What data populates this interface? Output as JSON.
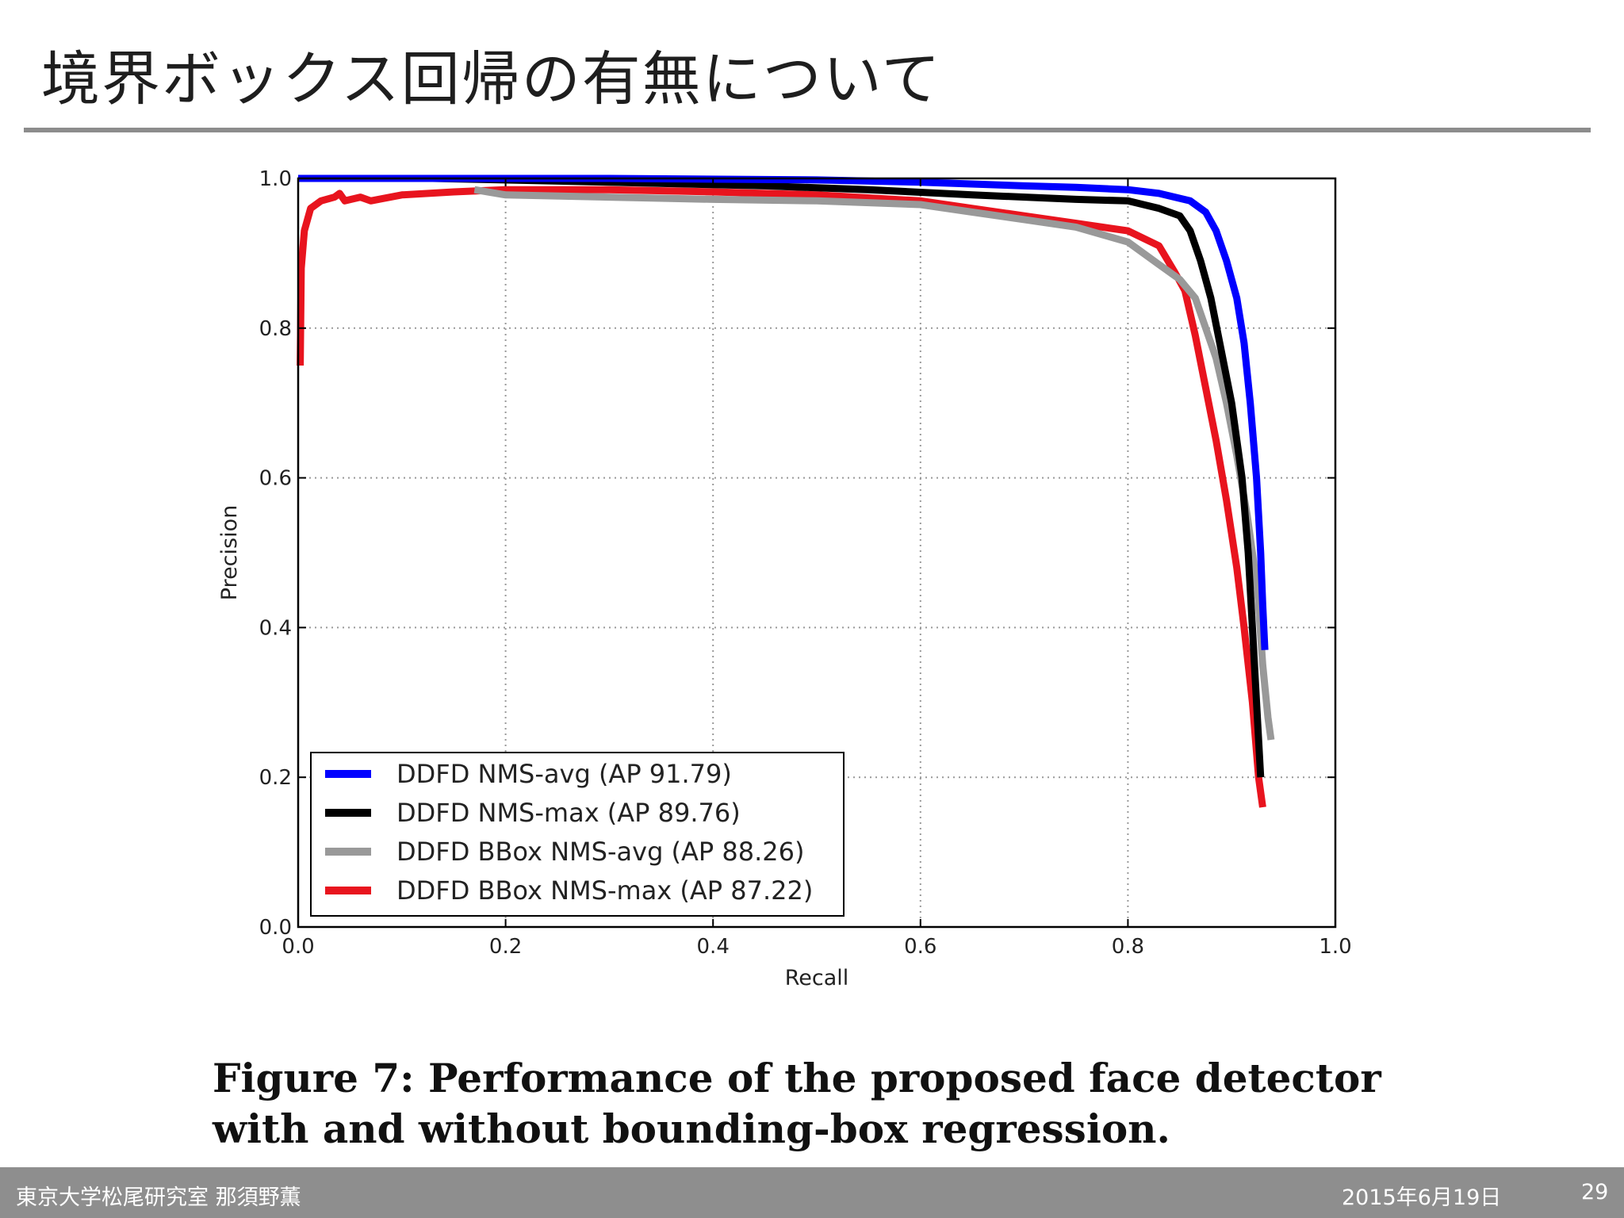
{
  "slide": {
    "title": "境界ボックス回帰の有無について",
    "caption_line1": "Figure 7: Performance of the proposed face detector",
    "caption_line2": "with and without bounding-box regression."
  },
  "footer": {
    "lab": "東京大学松尾研究室 那須野薫",
    "date": "2015年6月19日",
    "page": "29"
  },
  "chart_data": {
    "type": "line",
    "title": "",
    "xlabel": "Recall",
    "ylabel": "Precision",
    "xlim": [
      0.0,
      1.0
    ],
    "ylim": [
      0.0,
      1.0
    ],
    "xticks": [
      0.0,
      0.2,
      0.4,
      0.6,
      0.8,
      1.0
    ],
    "yticks": [
      0.0,
      0.2,
      0.4,
      0.6,
      0.8,
      1.0
    ],
    "xtick_labels": [
      "0.0",
      "0.2",
      "0.4",
      "0.6",
      "0.8",
      "1.0"
    ],
    "ytick_labels": [
      "0.0",
      "0.2",
      "0.4",
      "0.6",
      "0.8",
      "1.0"
    ],
    "grid": true,
    "legend_position": "lower-left",
    "series": [
      {
        "name": "DDFD NMS-avg (AP 91.79)",
        "color": "#0000ff",
        "points": [
          [
            0.0,
            1.0
          ],
          [
            0.3,
            1.0
          ],
          [
            0.5,
            0.998
          ],
          [
            0.6,
            0.995
          ],
          [
            0.7,
            0.99
          ],
          [
            0.75,
            0.988
          ],
          [
            0.8,
            0.985
          ],
          [
            0.83,
            0.98
          ],
          [
            0.86,
            0.97
          ],
          [
            0.875,
            0.955
          ],
          [
            0.885,
            0.93
          ],
          [
            0.895,
            0.89
          ],
          [
            0.905,
            0.84
          ],
          [
            0.912,
            0.78
          ],
          [
            0.918,
            0.7
          ],
          [
            0.924,
            0.6
          ],
          [
            0.928,
            0.5
          ],
          [
            0.93,
            0.43
          ],
          [
            0.932,
            0.37
          ]
        ]
      },
      {
        "name": "DDFD NMS-max (AP 89.76)",
        "color": "#000000",
        "points": [
          [
            0.13,
            1.0
          ],
          [
            0.3,
            0.995
          ],
          [
            0.45,
            0.99
          ],
          [
            0.55,
            0.985
          ],
          [
            0.65,
            0.978
          ],
          [
            0.75,
            0.972
          ],
          [
            0.8,
            0.97
          ],
          [
            0.83,
            0.96
          ],
          [
            0.85,
            0.95
          ],
          [
            0.86,
            0.93
          ],
          [
            0.87,
            0.89
          ],
          [
            0.88,
            0.84
          ],
          [
            0.89,
            0.77
          ],
          [
            0.9,
            0.7
          ],
          [
            0.91,
            0.6
          ],
          [
            0.916,
            0.5
          ],
          [
            0.92,
            0.4
          ],
          [
            0.924,
            0.3
          ],
          [
            0.928,
            0.2
          ]
        ]
      },
      {
        "name": "DDFD BBox NMS-avg (AP 88.26)",
        "color": "#999999",
        "points": [
          [
            0.17,
            0.985
          ],
          [
            0.2,
            0.978
          ],
          [
            0.3,
            0.975
          ],
          [
            0.4,
            0.972
          ],
          [
            0.5,
            0.97
          ],
          [
            0.6,
            0.965
          ],
          [
            0.65,
            0.955
          ],
          [
            0.7,
            0.945
          ],
          [
            0.75,
            0.935
          ],
          [
            0.8,
            0.915
          ],
          [
            0.83,
            0.885
          ],
          [
            0.85,
            0.865
          ],
          [
            0.865,
            0.84
          ],
          [
            0.875,
            0.8
          ],
          [
            0.885,
            0.76
          ],
          [
            0.895,
            0.7
          ],
          [
            0.905,
            0.63
          ],
          [
            0.915,
            0.55
          ],
          [
            0.925,
            0.45
          ],
          [
            0.93,
            0.35
          ],
          [
            0.935,
            0.28
          ],
          [
            0.938,
            0.25
          ]
        ]
      },
      {
        "name": "DDFD BBox NMS-max (AP 87.22)",
        "color": "#e8141e",
        "points": [
          [
            0.002,
            0.75
          ],
          [
            0.003,
            0.88
          ],
          [
            0.006,
            0.93
          ],
          [
            0.012,
            0.96
          ],
          [
            0.022,
            0.97
          ],
          [
            0.035,
            0.975
          ],
          [
            0.04,
            0.98
          ],
          [
            0.045,
            0.97
          ],
          [
            0.06,
            0.975
          ],
          [
            0.07,
            0.97
          ],
          [
            0.1,
            0.978
          ],
          [
            0.15,
            0.982
          ],
          [
            0.2,
            0.985
          ],
          [
            0.3,
            0.985
          ],
          [
            0.4,
            0.982
          ],
          [
            0.5,
            0.978
          ],
          [
            0.6,
            0.97
          ],
          [
            0.65,
            0.96
          ],
          [
            0.7,
            0.95
          ],
          [
            0.75,
            0.94
          ],
          [
            0.8,
            0.93
          ],
          [
            0.83,
            0.91
          ],
          [
            0.845,
            0.875
          ],
          [
            0.855,
            0.85
          ],
          [
            0.865,
            0.79
          ],
          [
            0.875,
            0.72
          ],
          [
            0.885,
            0.65
          ],
          [
            0.895,
            0.57
          ],
          [
            0.905,
            0.48
          ],
          [
            0.912,
            0.4
          ],
          [
            0.92,
            0.3
          ],
          [
            0.926,
            0.2
          ],
          [
            0.93,
            0.16
          ]
        ]
      }
    ]
  }
}
